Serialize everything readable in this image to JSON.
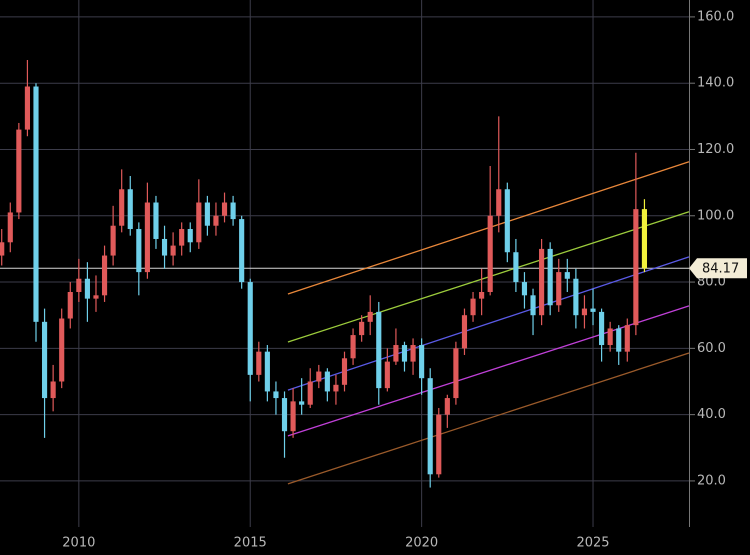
{
  "chart_data": {
    "type": "candlestick",
    "xlim": [
      2007.7,
      2027.8
    ],
    "xticks": [
      2010,
      2015,
      2020,
      2025
    ],
    "ylim": [
      6.1,
      165.1
    ],
    "yticks": [
      {
        "value": 20,
        "label": "20.0"
      },
      {
        "value": 40,
        "label": "40.0"
      },
      {
        "value": 60,
        "label": "60.0"
      },
      {
        "value": 80,
        "label": "80.0"
      },
      {
        "value": 100,
        "label": "100.0"
      },
      {
        "value": 120,
        "label": "120.0"
      },
      {
        "value": 140,
        "label": "140.0"
      },
      {
        "value": 160,
        "label": "160.0"
      }
    ],
    "grid": true,
    "up_color": "#e05a5a",
    "down_color": "#6fd0ea",
    "last_color": "#f2f23c",
    "x": [
      2007.75,
      2008,
      2008.25,
      2008.5,
      2008.75,
      2009,
      2009.25,
      2009.5,
      2009.75,
      2010,
      2010.25,
      2010.5,
      2010.75,
      2011,
      2011.25,
      2011.5,
      2011.75,
      2012,
      2012.25,
      2012.5,
      2012.75,
      2013,
      2013.25,
      2013.5,
      2013.75,
      2014,
      2014.25,
      2014.5,
      2014.75,
      2015,
      2015.25,
      2015.5,
      2015.75,
      2016,
      2016.25,
      2016.5,
      2016.75,
      2017,
      2017.25,
      2017.5,
      2017.75,
      2018,
      2018.25,
      2018.5,
      2018.75,
      2019,
      2019.25,
      2019.5,
      2019.75,
      2020,
      2020.25,
      2020.5,
      2020.75,
      2021,
      2021.25,
      2021.5,
      2021.75,
      2022,
      2022.25,
      2022.5,
      2022.75,
      2023,
      2023.25,
      2023.5,
      2023.75,
      2024,
      2024.25,
      2024.5,
      2024.75,
      2025,
      2025.25,
      2025.5,
      2025.75,
      2026,
      2026.25,
      2026.5
    ],
    "open": [
      88,
      92,
      101,
      126,
      139,
      68,
      45,
      50,
      69,
      77,
      81,
      75,
      76,
      88,
      97,
      108,
      96,
      83,
      104,
      93,
      88,
      91,
      96,
      92,
      104,
      97,
      100,
      104,
      99,
      80,
      52,
      59,
      47,
      45,
      35,
      44,
      43,
      50,
      53,
      47,
      49,
      57,
      64,
      68,
      71,
      48,
      56,
      61,
      56,
      61,
      51,
      22,
      40,
      45,
      60,
      70,
      75,
      77,
      100,
      108,
      89,
      80,
      76,
      70,
      90,
      73,
      83,
      81,
      70,
      72,
      71,
      61,
      66,
      59,
      67,
      102
    ],
    "high": [
      96,
      104,
      128,
      147,
      140,
      72,
      55,
      72,
      80,
      87,
      86,
      82,
      91,
      103,
      114,
      112,
      98,
      110,
      106,
      97,
      95,
      98,
      98,
      111,
      106,
      104,
      107,
      106,
      100,
      81,
      62,
      61,
      50,
      47,
      48,
      51,
      54,
      55,
      54,
      52,
      59,
      66,
      70,
      76,
      74,
      60,
      66,
      62,
      63,
      63,
      54,
      42,
      46,
      62,
      72,
      77,
      84,
      115,
      130,
      110,
      93,
      83,
      78,
      93,
      92,
      87,
      87,
      84,
      76,
      78,
      72,
      68,
      67,
      69,
      119,
      105
    ],
    "low": [
      85,
      89,
      99,
      124,
      62,
      33,
      41,
      48,
      66,
      74,
      68,
      71,
      74,
      85,
      95,
      94,
      76,
      81,
      90,
      84,
      85,
      88,
      89,
      90,
      94,
      94,
      98,
      97,
      78,
      44,
      50,
      44,
      40,
      27,
      33,
      40,
      42,
      48,
      44,
      43,
      47,
      55,
      62,
      64,
      43,
      47,
      55,
      53,
      52,
      46,
      18,
      21,
      36,
      43,
      58,
      68,
      70,
      76,
      95,
      86,
      77,
      72,
      64,
      67,
      70,
      71,
      77,
      66,
      66,
      67,
      56,
      59,
      55,
      56,
      64,
      83
    ],
    "close": [
      92,
      101,
      126,
      139,
      68,
      45,
      50,
      69,
      77,
      81,
      75,
      76,
      88,
      97,
      108,
      96,
      83,
      104,
      93,
      88,
      91,
      96,
      92,
      104,
      97,
      100,
      104,
      99,
      80,
      52,
      59,
      47,
      45,
      35,
      44,
      43,
      50,
      53,
      47,
      49,
      57,
      64,
      68,
      71,
      48,
      56,
      61,
      56,
      61,
      51,
      22,
      40,
      45,
      60,
      70,
      75,
      77,
      100,
      108,
      89,
      80,
      76,
      70,
      90,
      73,
      83,
      81,
      70,
      72,
      71,
      61,
      66,
      59,
      67,
      102,
      84.17
    ],
    "last_price": 84.17,
    "channels": [
      {
        "color": "#e8873a",
        "x": [
          2016.1,
          2027.8
        ],
        "values": [
          76.4,
          116.3
        ]
      },
      {
        "color": "#9ccc3c",
        "x": [
          2016.1,
          2027.8
        ],
        "values": [
          61.9,
          101.2
        ]
      },
      {
        "color": "#5a5ae6",
        "x": [
          2016.1,
          2027.8
        ],
        "values": [
          47.4,
          87.6
        ]
      },
      {
        "color": "#c040d8",
        "x": [
          2016.1,
          2027.8
        ],
        "values": [
          33.6,
          72.8
        ]
      },
      {
        "color": "#9a5a2a",
        "x": [
          2016.1,
          2027.8
        ],
        "values": [
          19.1,
          58.6
        ]
      }
    ]
  }
}
